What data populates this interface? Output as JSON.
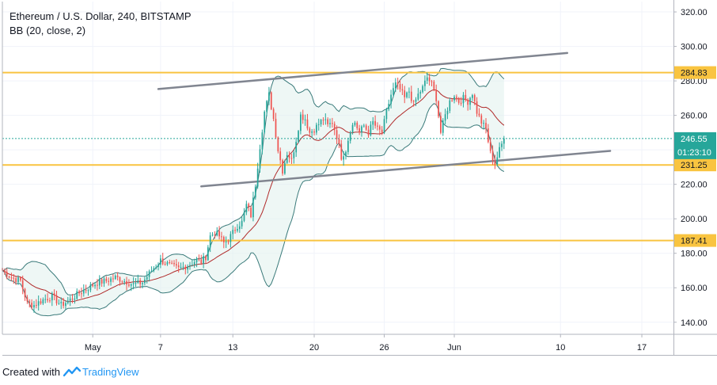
{
  "chart_data": {
    "type": "candlestick",
    "title": "Ethereum / U.S. Dollar, 240, BITSTAMP",
    "indicator": "BB (20, close, 2)",
    "ylim": [
      133,
      326
    ],
    "y_ticks": [
      140,
      160,
      180,
      200,
      220,
      240,
      260,
      280,
      300,
      320
    ],
    "y_tick_labels": [
      "140.00",
      "160.00",
      "180.00",
      "200.00",
      "220.00",
      "240.00",
      "260.00",
      "280.00",
      "300.00",
      "320.00"
    ],
    "x_range_bars": [
      0,
      297
    ],
    "x_ticks": [
      {
        "label": "May",
        "bar": 40
      },
      {
        "label": "7",
        "bar": 70
      },
      {
        "label": "13",
        "bar": 102
      },
      {
        "label": "20",
        "bar": 138
      },
      {
        "label": "26",
        "bar": 169
      },
      {
        "label": "Jun",
        "bar": 200
      },
      {
        "label": "10",
        "bar": 247
      },
      {
        "label": "17",
        "bar": 283
      }
    ],
    "horizontal_levels": [
      {
        "label": "284.83",
        "value": 284.83,
        "color": "#f9c440"
      },
      {
        "label": "231.25",
        "value": 231.25,
        "color": "#f9c440"
      },
      {
        "label": "187.41",
        "value": 187.41,
        "color": "#f9c440"
      }
    ],
    "last_price": {
      "label": "246.55",
      "value": 246.55,
      "countdown": "01:23:10",
      "color": "#26a69a"
    },
    "trend_lines": [
      {
        "from": [
          69,
          275.3
        ],
        "to": [
          250,
          296.2
        ]
      },
      {
        "from": [
          88,
          218.8
        ],
        "to": [
          269,
          239.4
        ]
      }
    ],
    "close_anchors": [
      [
        0,
        170
      ],
      [
        4,
        166
      ],
      [
        8,
        164
      ],
      [
        11,
        151
      ],
      [
        14,
        150
      ],
      [
        18,
        153
      ],
      [
        22,
        155
      ],
      [
        26,
        150
      ],
      [
        30,
        153
      ],
      [
        34,
        157
      ],
      [
        38,
        160
      ],
      [
        42,
        163
      ],
      [
        46,
        164
      ],
      [
        50,
        166
      ],
      [
        54,
        164
      ],
      [
        58,
        162
      ],
      [
        62,
        163
      ],
      [
        66,
        170
      ],
      [
        70,
        176
      ],
      [
        74,
        173
      ],
      [
        78,
        171
      ],
      [
        82,
        173
      ],
      [
        86,
        176
      ],
      [
        88,
        175
      ],
      [
        90,
        178
      ],
      [
        92,
        190
      ],
      [
        94,
        192
      ],
      [
        96,
        190
      ],
      [
        98,
        186
      ],
      [
        100,
        188
      ],
      [
        102,
        192
      ],
      [
        104,
        196
      ],
      [
        106,
        198
      ],
      [
        108,
        208
      ],
      [
        110,
        202
      ],
      [
        112,
        220
      ],
      [
        114,
        242
      ],
      [
        116,
        262
      ],
      [
        118,
        272
      ],
      [
        120,
        258
      ],
      [
        122,
        240
      ],
      [
        124,
        228
      ],
      [
        126,
        238
      ],
      [
        128,
        234
      ],
      [
        130,
        246
      ],
      [
        132,
        260
      ],
      [
        134,
        258
      ],
      [
        136,
        250
      ],
      [
        138,
        252
      ],
      [
        140,
        255
      ],
      [
        142,
        258
      ],
      [
        144,
        254
      ],
      [
        146,
        256
      ],
      [
        148,
        248
      ],
      [
        150,
        236
      ],
      [
        152,
        240
      ],
      [
        154,
        252
      ],
      [
        156,
        256
      ],
      [
        158,
        250
      ],
      [
        160,
        254
      ],
      [
        162,
        250
      ],
      [
        164,
        256
      ],
      [
        166,
        252
      ],
      [
        168,
        250
      ],
      [
        170,
        262
      ],
      [
        172,
        272
      ],
      [
        174,
        278
      ],
      [
        176,
        275
      ],
      [
        178,
        270
      ],
      [
        180,
        274
      ],
      [
        182,
        266
      ],
      [
        184,
        272
      ],
      [
        186,
        276
      ],
      [
        188,
        282
      ],
      [
        190,
        278
      ],
      [
        192,
        270
      ],
      [
        194,
        250
      ],
      [
        196,
        260
      ],
      [
        198,
        268
      ],
      [
        200,
        272
      ],
      [
        202,
        268
      ],
      [
        204,
        270
      ],
      [
        206,
        268
      ],
      [
        208,
        273
      ],
      [
        210,
        262
      ],
      [
        212,
        256
      ],
      [
        214,
        252
      ],
      [
        216,
        238
      ],
      [
        218,
        232
      ],
      [
        220,
        240
      ],
      [
        222,
        246.55
      ]
    ],
    "bb_period": 20,
    "bb_mult": 2
  }
}
